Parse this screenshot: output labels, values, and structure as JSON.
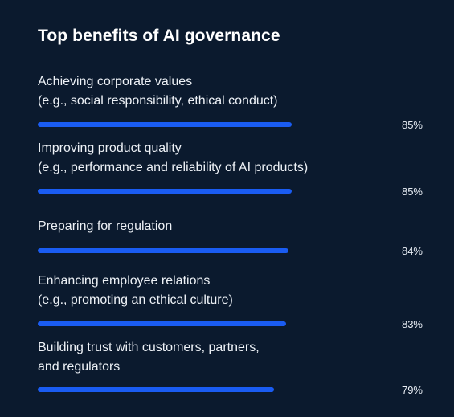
{
  "title": "Top benefits of AI governance",
  "chart_data": {
    "type": "bar",
    "orientation": "horizontal",
    "title": "Top benefits of AI governance",
    "categories": [
      "Achieving corporate values (e.g., social responsibility, ethical conduct)",
      "Improving product quality (e.g., performance and reliability of AI products)",
      "Preparing for regulation",
      "Enhancing employee relations (e.g., promoting an ethical culture)",
      "Building trust with customers, partners, and regulators"
    ],
    "values": [
      85,
      85,
      84,
      83,
      79
    ],
    "unit": "%",
    "xlim": [
      0,
      100
    ],
    "bar_color": "#1a5cf2",
    "background_color": "#0b1a2e"
  },
  "items": [
    {
      "line1": "Achieving corporate values",
      "line2": "(e.g., social responsibility, ethical conduct)",
      "value": 85,
      "value_label": "85%"
    },
    {
      "line1": "Improving product quality",
      "line2": "(e.g., performance and reliability of AI products)",
      "value": 85,
      "value_label": "85%"
    },
    {
      "line1": "Preparing for regulation",
      "line2": "",
      "value": 84,
      "value_label": "84%"
    },
    {
      "line1": "Enhancing employee relations",
      "line2": "(e.g., promoting an ethical culture)",
      "value": 83,
      "value_label": "83%"
    },
    {
      "line1": "Building trust with customers, partners,",
      "line2": "and regulators",
      "value": 79,
      "value_label": "79%"
    }
  ]
}
